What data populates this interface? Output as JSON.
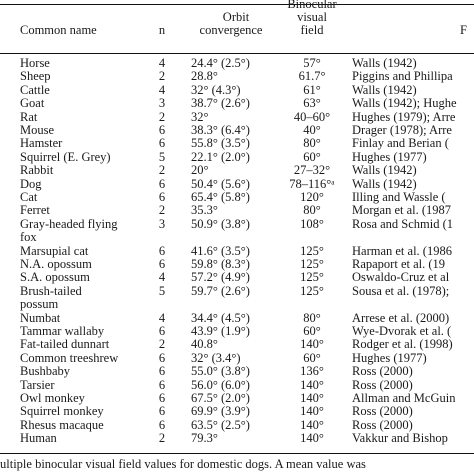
{
  "header": {
    "common_name": "Common name",
    "n": "n",
    "orbit": [
      "Orbit",
      "convergence"
    ],
    "binocular": [
      "Binocular",
      "visual",
      "field"
    ],
    "reference": "F"
  },
  "rows": [
    {
      "name": [
        "Horse"
      ],
      "n": "4",
      "orbit": "24.4° (2.5°)",
      "binocular": "57°",
      "ref": "Walls (1942)"
    },
    {
      "name": [
        "Sheep"
      ],
      "n": "2",
      "orbit": "28.8°",
      "binocular": "61.7°",
      "ref": "Piggins and Phillipa"
    },
    {
      "name": [
        "Cattle"
      ],
      "n": "4",
      "orbit": "32° (4.3°)",
      "binocular": "61°",
      "ref": "Walls (1942)"
    },
    {
      "name": [
        "Goat"
      ],
      "n": "3",
      "orbit": "38.7° (2.6°)",
      "binocular": "63°",
      "ref": "Walls (1942); Hughe"
    },
    {
      "name": [
        "Rat"
      ],
      "n": "2",
      "orbit": "32°",
      "binocular": "40–60°",
      "ref": "Hughes (1979); Arre"
    },
    {
      "name": [
        "Mouse"
      ],
      "n": "6",
      "orbit": "38.3° (6.4°)",
      "binocular": "40°",
      "ref": "Drager (1978); Arre"
    },
    {
      "name": [
        "Hamster"
      ],
      "n": "6",
      "orbit": "55.8° (3.5°)",
      "binocular": "80°",
      "ref": "Finlay and Berian ("
    },
    {
      "name": [
        "Squirrel (E. Grey)"
      ],
      "n": "5",
      "orbit": "22.1° (2.0°)",
      "binocular": "60°",
      "ref": "Hughes (1977)"
    },
    {
      "name": [
        "Rabbit"
      ],
      "n": "2",
      "orbit": "20°",
      "binocular": "27–32°",
      "ref": "Walls (1942)"
    },
    {
      "name": [
        "Dog"
      ],
      "n": "6",
      "orbit": "50.4° (5.6°)",
      "binocular": "78–116°ᵃ",
      "ref": "Walls (1942)"
    },
    {
      "name": [
        "Cat"
      ],
      "n": "6",
      "orbit": "65.4° (5.8°)",
      "binocular": "120°",
      "ref": "Illing and Wassle ("
    },
    {
      "name": [
        "Ferret"
      ],
      "n": "2",
      "orbit": "35.3°",
      "binocular": "80°",
      "ref": "Morgan et al. (1987"
    },
    {
      "name": [
        "Gray-headed flying",
        "fox"
      ],
      "n": "3",
      "orbit": "50.9° (3.8°)",
      "binocular": "108°",
      "ref": "Rosa and Schmid (1"
    },
    {
      "name": [
        "Marsupial cat"
      ],
      "n": "6",
      "orbit": "41.6° (3.5°)",
      "binocular": "125°",
      "ref": "Harman et al. (1986"
    },
    {
      "name": [
        "N.A. opossum"
      ],
      "n": "6",
      "orbit": "59.8° (8.3°)",
      "binocular": "125°",
      "ref": "Rapaport et al. (19"
    },
    {
      "name": [
        "S.A. opossum"
      ],
      "n": "4",
      "orbit": "57.2° (4.9°)",
      "binocular": "125°",
      "ref": "Oswaldo-Cruz et al"
    },
    {
      "name": [
        "Brush-tailed",
        "possum"
      ],
      "n": "5",
      "orbit": "59.7° (2.6°)",
      "binocular": "125°",
      "ref": "Sousa et al. (1978);"
    },
    {
      "name": [
        "Numbat"
      ],
      "n": "4",
      "orbit": "34.4° (4.5°)",
      "binocular": "80°",
      "ref": "Arrese et al. (2000)"
    },
    {
      "name": [
        "Tammar wallaby"
      ],
      "n": "6",
      "orbit": "43.9° (1.9°)",
      "binocular": "60°",
      "ref": "Wye-Dvorak et al. ("
    },
    {
      "name": [
        "Fat-tailed dunnart"
      ],
      "n": "2",
      "orbit": "40.8°",
      "binocular": "140°",
      "ref": "Rodger et al. (1998)"
    },
    {
      "name": [
        "Common treeshrew"
      ],
      "n": "6",
      "orbit": "32° (3.4°)",
      "binocular": "60°",
      "ref": "Hughes (1977)"
    },
    {
      "name": [
        "Bushbaby"
      ],
      "n": "6",
      "orbit": "55.0° (3.8°)",
      "binocular": "136°",
      "ref": "Ross (2000)"
    },
    {
      "name": [
        "Tarsier"
      ],
      "n": "6",
      "orbit": "56.0° (6.0°)",
      "binocular": "140°",
      "ref": "Ross (2000)"
    },
    {
      "name": [
        "Owl monkey"
      ],
      "n": "6",
      "orbit": "67.5° (2.0°)",
      "binocular": "140°",
      "ref": "Allman and McGuin"
    },
    {
      "name": [
        "Squirrel monkey"
      ],
      "n": "6",
      "orbit": "69.9° (3.9°)",
      "binocular": "140°",
      "ref": "Ross (2000)"
    },
    {
      "name": [
        "Rhesus macaque"
      ],
      "n": "6",
      "orbit": "63.5° (2.5°)",
      "binocular": "140°",
      "ref": "Ross (2000)"
    },
    {
      "name": [
        "Human"
      ],
      "n": "2",
      "orbit": "79.3°",
      "binocular": "140°",
      "ref": "Vakkur and Bishop"
    }
  ],
  "caption": "ultiple binocular visual field values for domestic dogs. A mean value was"
}
